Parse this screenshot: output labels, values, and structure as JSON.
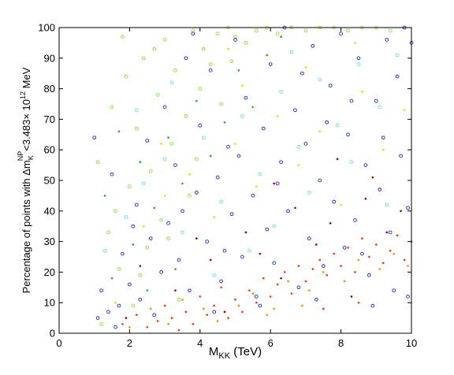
{
  "chart_data": {
    "type": "scatter",
    "title": "",
    "xlabel": {
      "main": "M",
      "sub": "KK",
      "rest": " (TeV)"
    },
    "ylabel": {
      "p1": "Percentage of points with Δm",
      "sub": "K",
      "sup": "NP",
      "p2": "<3.483× 10",
      "exp": "12",
      "p3": " MeV"
    },
    "xlim": [
      0,
      10
    ],
    "ylim": [
      0,
      100
    ],
    "xticks": [
      0,
      2,
      4,
      6,
      8,
      10
    ],
    "yticks": [
      0,
      10,
      20,
      30,
      40,
      50,
      60,
      70,
      80,
      90,
      100
    ],
    "grid": false,
    "legend": "none",
    "series": [
      {
        "marker": "dot",
        "color": "#ff3300",
        "points": [
          [
            1.8,
            3
          ],
          [
            2.2,
            6
          ],
          [
            2.5,
            2
          ],
          [
            2.8,
            4
          ],
          [
            3.0,
            9
          ],
          [
            3.2,
            5
          ],
          [
            3.4,
            1
          ],
          [
            3.6,
            7
          ],
          [
            3.8,
            3
          ],
          [
            4.0,
            12
          ],
          [
            4.2,
            6
          ],
          [
            4.4,
            9
          ],
          [
            4.6,
            15
          ],
          [
            4.8,
            5
          ],
          [
            5.0,
            11
          ],
          [
            5.2,
            7
          ],
          [
            5.4,
            14
          ],
          [
            5.6,
            10
          ],
          [
            5.8,
            18
          ],
          [
            6.0,
            12
          ],
          [
            6.2,
            16
          ],
          [
            6.4,
            20
          ],
          [
            6.6,
            13
          ],
          [
            6.8,
            22
          ],
          [
            7.0,
            17
          ],
          [
            7.2,
            21
          ],
          [
            7.4,
            24
          ],
          [
            7.6,
            19
          ],
          [
            7.8,
            26
          ],
          [
            8.0,
            22
          ],
          [
            8.2,
            28
          ],
          [
            8.4,
            20
          ],
          [
            8.6,
            31
          ],
          [
            8.8,
            25
          ],
          [
            9.0,
            29
          ],
          [
            9.2,
            23
          ],
          [
            9.4,
            27
          ],
          [
            9.6,
            32
          ],
          [
            9.8,
            24
          ],
          [
            10.0,
            30
          ],
          [
            8.5,
            10
          ],
          [
            7.5,
            8
          ]
        ]
      },
      {
        "marker": "dot",
        "color": "#ff8800",
        "points": [
          [
            2.0,
            2
          ],
          [
            2.6,
            8
          ],
          [
            3.1,
            3
          ],
          [
            3.5,
            11
          ],
          [
            4.1,
            8
          ],
          [
            4.5,
            4
          ],
          [
            5.1,
            9
          ],
          [
            5.5,
            13
          ],
          [
            6.1,
            8
          ],
          [
            6.5,
            17
          ],
          [
            7.1,
            14
          ],
          [
            7.5,
            20
          ],
          [
            8.1,
            17
          ],
          [
            8.5,
            24
          ],
          [
            9.1,
            21
          ],
          [
            9.5,
            26
          ],
          [
            9.9,
            22
          ],
          [
            6.9,
            9
          ],
          [
            5.9,
            6
          ]
        ]
      },
      {
        "marker": "dot",
        "color": "#990000",
        "points": [
          [
            2.3,
            22
          ],
          [
            3.3,
            14
          ],
          [
            3.9,
            31
          ],
          [
            4.7,
            7
          ],
          [
            5.3,
            33
          ],
          [
            5.7,
            26
          ],
          [
            6.3,
            18
          ],
          [
            6.7,
            41
          ],
          [
            7.3,
            29
          ],
          [
            7.7,
            36
          ],
          [
            8.3,
            12
          ],
          [
            8.7,
            44
          ],
          [
            9.3,
            33
          ],
          [
            9.7,
            40
          ],
          [
            4.3,
            24
          ],
          [
            1.9,
            5
          ],
          [
            8.9,
            51
          ],
          [
            7.9,
            57
          ],
          [
            6.1,
            49
          ]
        ]
      },
      {
        "marker": "dot",
        "color": "#dddd00",
        "points": [
          [
            1.6,
            10
          ],
          [
            2.4,
            35
          ],
          [
            3.0,
            45
          ],
          [
            3.7,
            52
          ],
          [
            4.4,
            38
          ],
          [
            5.0,
            62
          ],
          [
            5.6,
            48
          ],
          [
            6.2,
            71
          ],
          [
            6.8,
            55
          ],
          [
            7.4,
            66
          ],
          [
            8.0,
            42
          ],
          [
            8.6,
            79
          ],
          [
            9.2,
            60
          ],
          [
            9.8,
            73
          ],
          [
            7.0,
            87
          ],
          [
            5.2,
            81
          ],
          [
            4.8,
            93
          ],
          [
            8.4,
            95
          ],
          [
            2.9,
            62
          ]
        ]
      },
      {
        "marker": "dot",
        "color": "#22aa22",
        "points": [
          [
            1.3,
            45
          ],
          [
            1.7,
            66
          ],
          [
            2.1,
            29
          ],
          [
            2.3,
            56
          ],
          [
            2.7,
            41
          ],
          [
            3.1,
            64
          ],
          [
            3.5,
            49
          ],
          [
            3.9,
            76
          ],
          [
            4.3,
            58
          ],
          [
            4.7,
            69
          ],
          [
            5.1,
            86
          ],
          [
            5.5,
            74
          ],
          [
            5.9,
            91
          ],
          [
            6.3,
            97
          ],
          [
            1.5,
            18
          ],
          [
            2.5,
            14
          ],
          [
            3.3,
            21
          ]
        ]
      },
      {
        "marker": "circle",
        "color": "#88dd33",
        "points": [
          [
            1.1,
            56
          ],
          [
            1.2,
            3
          ],
          [
            1.4,
            33
          ],
          [
            1.5,
            74
          ],
          [
            1.7,
            21
          ],
          [
            1.8,
            97
          ],
          [
            1.9,
            84
          ],
          [
            2.0,
            48
          ],
          [
            2.1,
            9
          ],
          [
            2.2,
            67
          ],
          [
            2.4,
            90
          ],
          [
            2.5,
            28
          ],
          [
            2.6,
            53
          ],
          [
            2.8,
            78
          ],
          [
            2.9,
            37
          ],
          [
            3.0,
            96
          ],
          [
            3.2,
            62
          ],
          [
            3.3,
            86
          ],
          [
            3.4,
            11
          ],
          [
            3.6,
            71
          ],
          [
            3.7,
            45
          ],
          [
            3.8,
            99
          ],
          [
            4.0,
            80
          ],
          [
            4.1,
            93
          ],
          [
            4.3,
            88
          ],
          [
            4.5,
            98
          ],
          [
            4.6,
            75
          ],
          [
            4.8,
            100
          ],
          [
            5.0,
            97
          ],
          [
            5.3,
            95
          ],
          [
            5.6,
            99
          ],
          [
            5.9,
            100
          ],
          [
            6.2,
            98
          ],
          [
            6.6,
            100
          ],
          [
            7.0,
            99
          ],
          [
            7.4,
            100
          ],
          [
            7.8,
            100
          ],
          [
            8.2,
            99
          ],
          [
            8.6,
            100
          ],
          [
            9.0,
            100
          ],
          [
            9.4,
            99
          ],
          [
            9.8,
            100
          ],
          [
            2.3,
            19
          ],
          [
            3.1,
            31
          ],
          [
            3.9,
            57
          ],
          [
            1.6,
            40
          ],
          [
            2.7,
            93
          ],
          [
            4.9,
            89
          ]
        ]
      },
      {
        "marker": "circle",
        "color": "#66dddd",
        "points": [
          [
            1.3,
            27
          ],
          [
            1.9,
            38
          ],
          [
            2.4,
            49
          ],
          [
            3.0,
            57
          ],
          [
            3.5,
            33
          ],
          [
            4.1,
            64
          ],
          [
            4.6,
            43
          ],
          [
            5.2,
            71
          ],
          [
            5.7,
            52
          ],
          [
            6.3,
            79
          ],
          [
            6.8,
            61
          ],
          [
            7.4,
            83
          ],
          [
            7.9,
            68
          ],
          [
            8.5,
            88
          ],
          [
            9.1,
            74
          ],
          [
            9.6,
            91
          ],
          [
            5.4,
            27
          ],
          [
            6.1,
            35
          ],
          [
            7.1,
            46
          ],
          [
            8.3,
            56
          ],
          [
            4.4,
            19
          ],
          [
            3.2,
            82
          ],
          [
            2.2,
            73
          ],
          [
            6.6,
            92
          ],
          [
            9.3,
            42
          ]
        ]
      },
      {
        "marker": "circle",
        "color": "#2222cc",
        "points": [
          [
            1.0,
            64
          ],
          [
            1.1,
            5
          ],
          [
            1.2,
            14
          ],
          [
            1.4,
            7
          ],
          [
            1.6,
            2
          ],
          [
            1.8,
            26
          ],
          [
            2.0,
            16
          ],
          [
            2.2,
            42
          ],
          [
            2.3,
            11
          ],
          [
            2.6,
            31
          ],
          [
            2.7,
            6
          ],
          [
            2.9,
            20
          ],
          [
            3.0,
            74
          ],
          [
            3.1,
            36
          ],
          [
            3.3,
            55
          ],
          [
            3.4,
            24
          ],
          [
            3.6,
            90
          ],
          [
            3.7,
            14
          ],
          [
            3.9,
            46
          ],
          [
            4.0,
            68
          ],
          [
            4.2,
            30
          ],
          [
            4.3,
            86
          ],
          [
            4.5,
            51
          ],
          [
            4.6,
            17
          ],
          [
            4.8,
            61
          ],
          [
            4.9,
            39
          ],
          [
            5.0,
            96
          ],
          [
            5.2,
            25
          ],
          [
            5.3,
            77
          ],
          [
            5.5,
            45
          ],
          [
            5.6,
            12
          ],
          [
            5.8,
            67
          ],
          [
            5.9,
            34
          ],
          [
            6.0,
            88
          ],
          [
            6.1,
            23
          ],
          [
            6.3,
            56
          ],
          [
            6.4,
            100
          ],
          [
            6.5,
            40
          ],
          [
            6.7,
            73
          ],
          [
            6.8,
            15
          ],
          [
            7.0,
            62
          ],
          [
            7.1,
            31
          ],
          [
            7.2,
            94
          ],
          [
            7.4,
            50
          ],
          [
            7.5,
            22
          ],
          [
            7.7,
            81
          ],
          [
            7.8,
            43
          ],
          [
            8.0,
            98
          ],
          [
            8.1,
            28
          ],
          [
            8.2,
            65
          ],
          [
            8.4,
            37
          ],
          [
            8.5,
            90
          ],
          [
            8.7,
            55
          ],
          [
            8.8,
            19
          ],
          [
            9.0,
            76
          ],
          [
            9.1,
            47
          ],
          [
            9.3,
            96
          ],
          [
            9.4,
            33
          ],
          [
            9.6,
            84
          ],
          [
            9.7,
            58
          ],
          [
            9.8,
            100
          ],
          [
            9.9,
            41
          ],
          [
            10.0,
            95
          ],
          [
            4.4,
            7
          ],
          [
            5.7,
            9
          ],
          [
            7.3,
            11
          ],
          [
            8.9,
            9
          ],
          [
            9.5,
            14
          ],
          [
            3.8,
            98
          ],
          [
            2.5,
            63
          ],
          [
            1.5,
            52
          ],
          [
            6.9,
            85
          ],
          [
            8.3,
            76
          ],
          [
            5.1,
            58
          ],
          [
            6.2,
            49
          ],
          [
            7.6,
            69
          ],
          [
            9.2,
            64
          ],
          [
            4.7,
            27
          ],
          [
            3.5,
            40
          ],
          [
            2.1,
            35
          ],
          [
            8.6,
            26
          ],
          [
            9.9,
            12
          ],
          [
            1.7,
            9
          ]
        ]
      }
    ]
  }
}
